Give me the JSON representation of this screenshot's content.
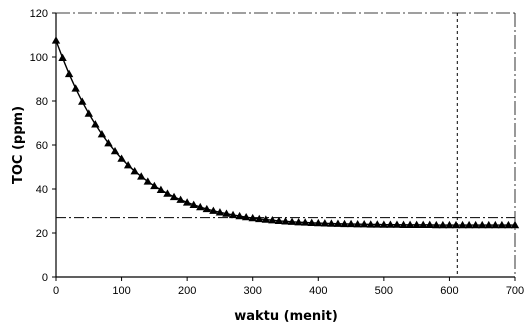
{
  "chart_data": {
    "type": "line",
    "title": "",
    "xlabel": "waktu (menit)",
    "ylabel": "TOC (ppm)",
    "xlim": [
      0,
      700
    ],
    "ylim": [
      0,
      120
    ],
    "xticks": [
      0,
      100,
      200,
      300,
      400,
      500,
      600,
      700
    ],
    "yticks": [
      0,
      20,
      40,
      60,
      80,
      100,
      120
    ],
    "grid": false,
    "legend": "none",
    "marker": "triangle",
    "colors": {
      "series": "#000000",
      "reference": "#000000"
    },
    "series": [
      {
        "x": [
          0,
          10,
          20,
          30,
          40,
          50,
          60,
          70,
          80,
          90,
          100,
          110,
          120,
          130,
          140,
          150,
          160,
          170,
          180,
          190,
          200,
          210,
          220,
          230,
          240,
          250,
          260,
          270,
          280,
          290,
          300,
          310,
          320,
          330,
          340,
          350,
          360,
          370,
          380,
          390,
          400,
          410,
          420,
          430,
          440,
          450,
          460,
          470,
          480,
          490,
          500,
          510,
          520,
          530,
          540,
          550,
          560,
          570,
          580,
          590,
          600,
          610,
          620,
          630,
          640,
          650,
          660,
          670,
          680,
          690,
          700
        ],
        "y": [
          107.5,
          99.6,
          92.3,
          85.7,
          79.7,
          74.3,
          69.4,
          64.9,
          60.8,
          57.2,
          53.8,
          50.8,
          48.1,
          45.7,
          43.4,
          41.4,
          39.6,
          37.9,
          36.4,
          35.1,
          33.9,
          32.8,
          31.8,
          30.9,
          30.1,
          29.4,
          28.8,
          28.2,
          27.7,
          27.2,
          26.8,
          26.4,
          26.1,
          25.8,
          25.5,
          25.3,
          25.1,
          24.9,
          24.8,
          24.6,
          24.5,
          24.4,
          24.3,
          24.2,
          24.1,
          24.1,
          24.0,
          24.0,
          23.9,
          23.9,
          23.8,
          23.8,
          23.8,
          23.7,
          23.7,
          23.7,
          23.7,
          23.7,
          23.6,
          23.6,
          23.6,
          23.6,
          23.6,
          23.6,
          23.6,
          23.6,
          23.6,
          23.6,
          23.6,
          23.6,
          23.6
        ]
      }
    ],
    "reference_lines": {
      "horizontal_y": 27,
      "vertical_x": 612
    }
  }
}
